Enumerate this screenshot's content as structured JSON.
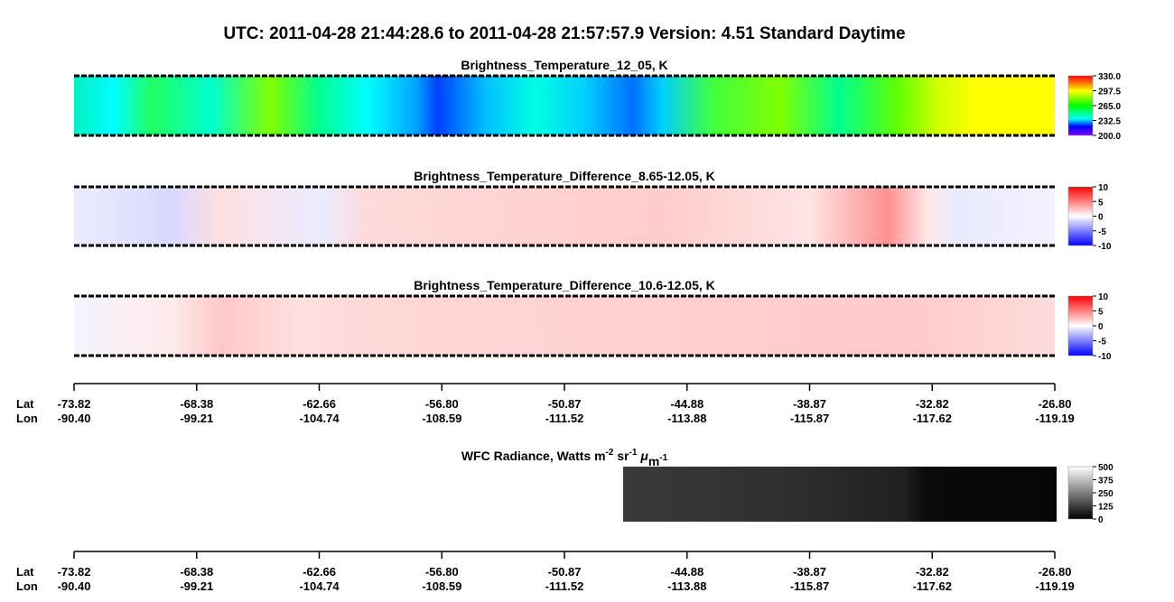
{
  "title": "UTC:  2011-04-28   21:44:28.6  to  2011-04-28   21:57:57.9    Version: 4.51  Standard Daytime",
  "panels": [
    {
      "title": "Brightness_Temperature_12_05, K",
      "colorbar": [
        "330.0",
        "297.5",
        "265.0",
        "232.5",
        "200.0"
      ]
    },
    {
      "title": "Brightness_Temperature_Difference_8.65-12.05, K",
      "colorbar": [
        "10",
        "5",
        "0",
        "-5",
        "-10"
      ]
    },
    {
      "title": "Brightness_Temperature_Difference_10.6-12.05, K",
      "colorbar": [
        "10",
        "5",
        "0",
        "-5",
        "-10"
      ]
    }
  ],
  "wfc": {
    "title_parts": [
      "WFC Radiance, Watts m",
      "-2",
      " sr",
      "-1",
      " μ",
      "m",
      "-1"
    ],
    "colorbar": [
      "500",
      "375",
      "250",
      "125",
      "0"
    ]
  },
  "axis": {
    "lat_label": "Lat",
    "lon_label": "Lon",
    "lat": [
      "-73.82",
      "-68.38",
      "-62.66",
      "-56.80",
      "-50.87",
      "-44.88",
      "-38.87",
      "-32.82",
      "-26.80"
    ],
    "lon": [
      "-90.40",
      "-99.21",
      "-104.74",
      "-108.59",
      "-111.52",
      "-113.88",
      "-115.87",
      "-117.62",
      "-119.19"
    ]
  }
}
